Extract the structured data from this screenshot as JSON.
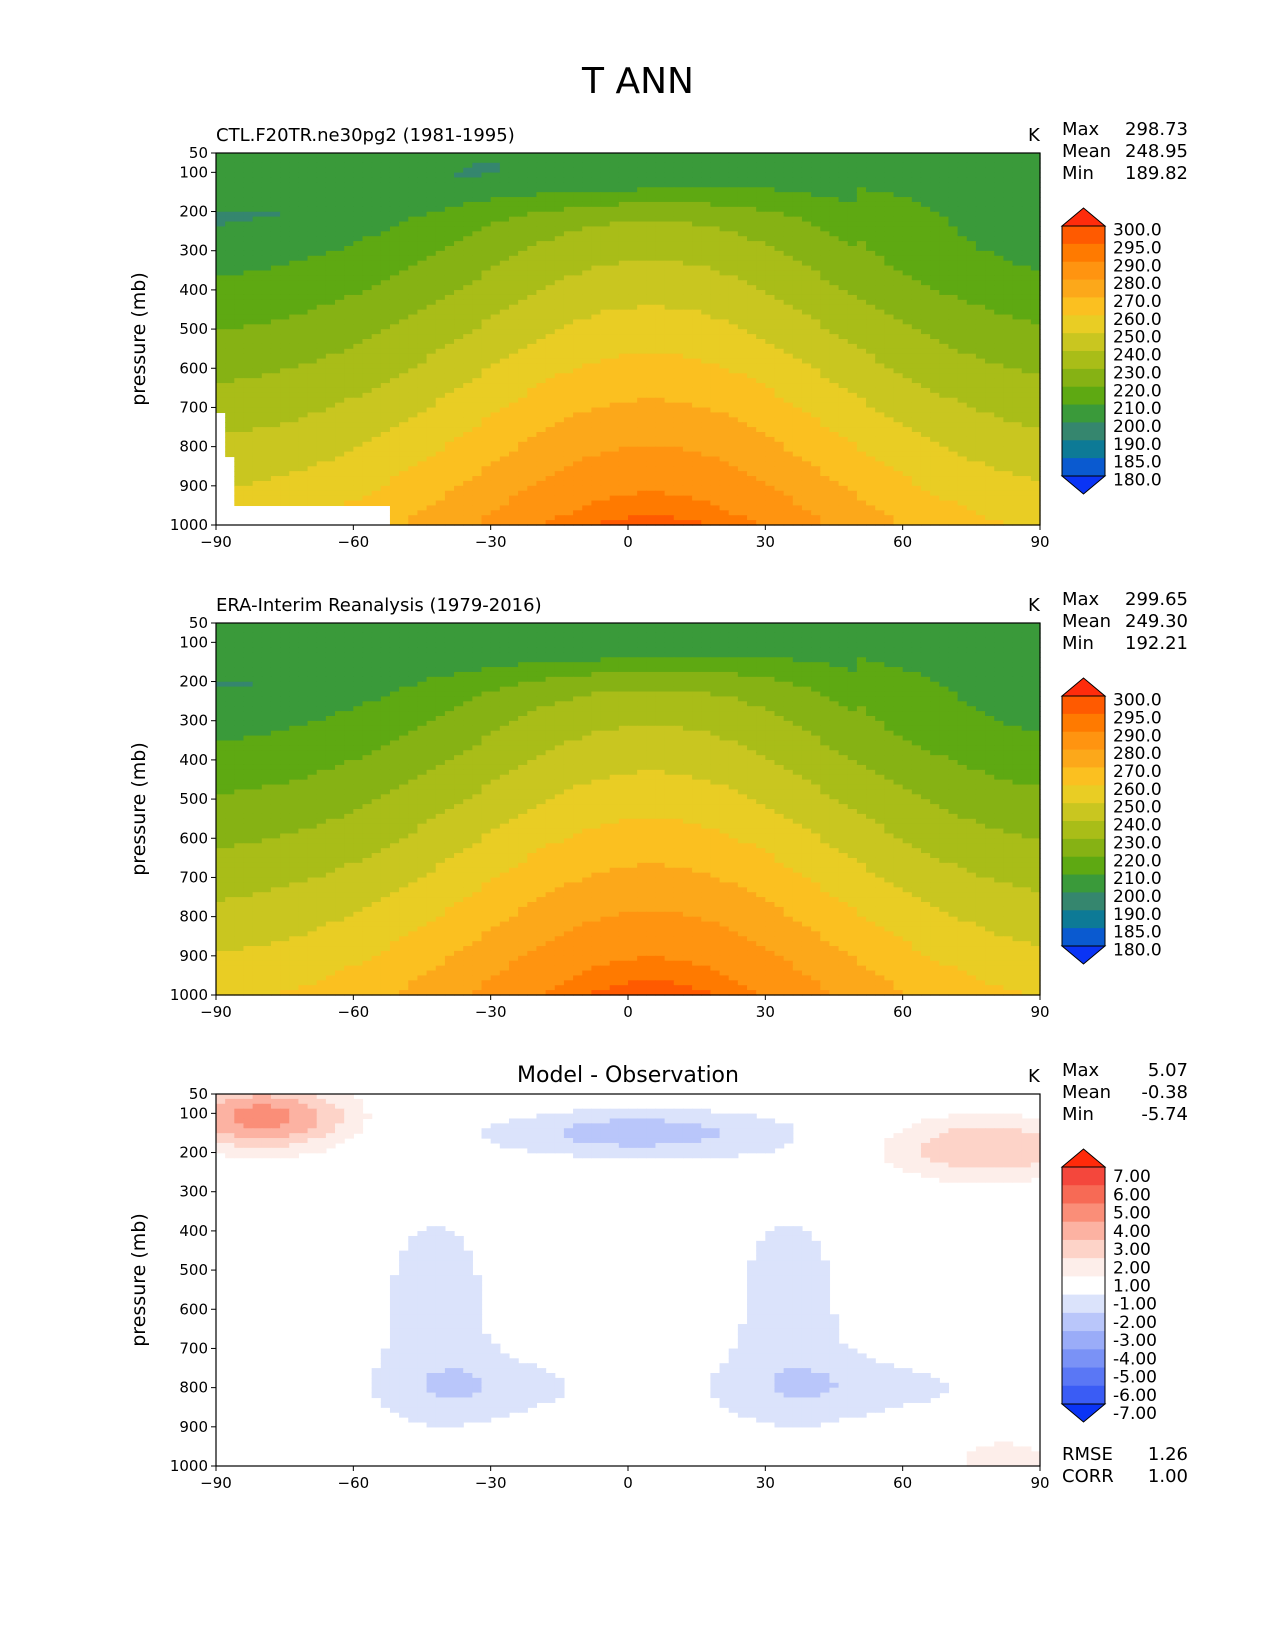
{
  "figure": {
    "title": "T ANN"
  },
  "chart_data": [
    {
      "type": "contourf",
      "id": "model",
      "title_left": "CTL.F20TR.ne30pg2 (1981-1995)",
      "title_center": "",
      "units": "K",
      "xlabel": "",
      "ylabel": "pressure (mb)",
      "xlim": [
        -90,
        90
      ],
      "ylim": [
        1000,
        50
      ],
      "xticks": [
        "−90",
        "−60",
        "−30",
        "0",
        "30",
        "60",
        "90"
      ],
      "yticks": [
        "50",
        "100",
        "200",
        "300",
        "400",
        "500",
        "600",
        "700",
        "800",
        "900",
        "1000"
      ],
      "stats": [
        {
          "label": "Max",
          "value": "298.73"
        },
        {
          "label": "Mean",
          "value": "248.95"
        },
        {
          "label": "Min",
          "value": "189.82"
        }
      ],
      "colorbar": {
        "levels": [
          "300.0",
          "295.0",
          "290.0",
          "280.0",
          "270.0",
          "260.0",
          "250.0",
          "240.0",
          "230.0",
          "220.0",
          "210.0",
          "200.0",
          "190.0",
          "185.0",
          "180.0"
        ],
        "colors": [
          "#ff2c0c",
          "#ff5a00",
          "#ff7a00",
          "#ff9410",
          "#fca81a",
          "#fbc020",
          "#e9cd24",
          "#c9c620",
          "#a9bd18",
          "#86b214",
          "#5ea912",
          "#3a9a3a",
          "#35866e",
          "#0d7a96",
          "#0a5ad0",
          "#0a34f5"
        ]
      }
    },
    {
      "type": "contourf",
      "id": "obs",
      "title_left": "ERA-Interim Reanalysis (1979-2016)",
      "title_center": "",
      "units": "K",
      "xlabel": "",
      "ylabel": "pressure (mb)",
      "xlim": [
        -90,
        90
      ],
      "ylim": [
        1000,
        50
      ],
      "xticks": [
        "−90",
        "−60",
        "−30",
        "0",
        "30",
        "60",
        "90"
      ],
      "yticks": [
        "50",
        "100",
        "200",
        "300",
        "400",
        "500",
        "600",
        "700",
        "800",
        "900",
        "1000"
      ],
      "stats": [
        {
          "label": "Max",
          "value": "299.65"
        },
        {
          "label": "Mean",
          "value": "249.30"
        },
        {
          "label": "Min",
          "value": "192.21"
        }
      ],
      "colorbar": {
        "levels": [
          "300.0",
          "295.0",
          "290.0",
          "280.0",
          "270.0",
          "260.0",
          "250.0",
          "240.0",
          "230.0",
          "220.0",
          "210.0",
          "200.0",
          "190.0",
          "185.0",
          "180.0"
        ],
        "colors": [
          "#ff2c0c",
          "#ff5a00",
          "#ff7a00",
          "#ff9410",
          "#fca81a",
          "#fbc020",
          "#e9cd24",
          "#c9c620",
          "#a9bd18",
          "#86b214",
          "#5ea912",
          "#3a9a3a",
          "#35866e",
          "#0d7a96",
          "#0a5ad0",
          "#0a34f5"
        ]
      }
    },
    {
      "type": "contourf",
      "id": "diff",
      "title_left": "",
      "title_center": "Model - Observation",
      "units": "K",
      "xlabel": "",
      "ylabel": "pressure (mb)",
      "xlim": [
        -90,
        90
      ],
      "ylim": [
        1000,
        50
      ],
      "xticks": [
        "−90",
        "−60",
        "−30",
        "0",
        "30",
        "60",
        "90"
      ],
      "yticks": [
        "50",
        "100",
        "200",
        "300",
        "400",
        "500",
        "600",
        "700",
        "800",
        "900",
        "1000"
      ],
      "stats": [
        {
          "label": "Max",
          "value": "5.07"
        },
        {
          "label": "Mean",
          "value": "-0.38"
        },
        {
          "label": "Min",
          "value": "-5.74"
        }
      ],
      "extra_stats": [
        {
          "label": "RMSE",
          "value": "1.26"
        },
        {
          "label": "CORR",
          "value": "1.00"
        }
      ],
      "colorbar": {
        "levels": [
          "7.00",
          "6.00",
          "5.00",
          "4.00",
          "3.00",
          "2.00",
          "1.00",
          "-1.00",
          "-2.00",
          "-3.00",
          "-4.00",
          "-5.00",
          "-6.00",
          "-7.00"
        ],
        "colors": [
          "#ff2a0a",
          "#f4473c",
          "#f76a55",
          "#fa8e78",
          "#fcb2a2",
          "#fdd3c8",
          "#fdeeea",
          "#ffffff",
          "#dbe3fb",
          "#b9c6fa",
          "#9aacf8",
          "#7a92f6",
          "#5a77f5",
          "#3a5cf5",
          "#0a34f5"
        ]
      }
    }
  ]
}
